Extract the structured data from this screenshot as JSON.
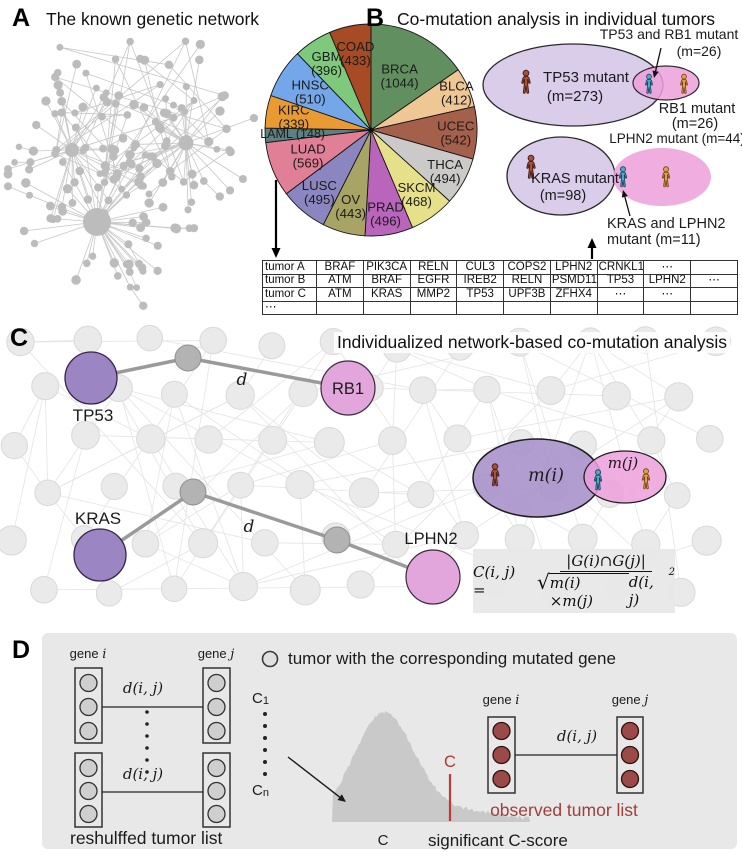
{
  "panel_a": {
    "letter": "A",
    "title": "The known genetic network"
  },
  "panel_b": {
    "letter": "B",
    "title": "Co-mutation analysis in individual tumors",
    "venn_top": {
      "overlap_name": "TP53 and RB1 mutant",
      "overlap_m": "(m=26)",
      "left_name": "TP53 mutant",
      "left_m": "(m=273)",
      "right_name": "RB1 mutant",
      "right_m": "(m=26)"
    },
    "venn_bottom": {
      "right_name": "LPHN2 mutant (m=44)",
      "left_name": "KRAS mutant",
      "left_m": "(m=98)",
      "overlap_line1": "KRAS and LPHN2",
      "overlap_line2": "mutant (m=11)"
    },
    "table_rows": [
      [
        "tumor A",
        "BRAF",
        "PIK3CA",
        "RELN",
        "CUL3",
        "COPS2",
        "LPHN2",
        "CRNKL1",
        "⋯",
        ""
      ],
      [
        "tumor B",
        "ATM",
        "BRAF",
        "EGFR",
        "IREB2",
        "RELN",
        "PSMD11",
        "TP53",
        "LPHN2",
        "⋯"
      ],
      [
        "tumor C",
        "ATM",
        "KRAS",
        "MMP2",
        "TP53",
        "UPF3B",
        "ZFHX4",
        "⋯",
        "⋯",
        ""
      ],
      [
        "⋯",
        "",
        "",
        "",
        "",
        "",
        "",
        "",
        "",
        ""
      ]
    ]
  },
  "chart_data": {
    "type": "pie",
    "title": "",
    "categories": [
      "BRCA",
      "BLCA",
      "UCEC",
      "THCA",
      "SKCM",
      "PRAD",
      "OV",
      "LUSC",
      "LUAD",
      "LAML",
      "KIRC",
      "HNSC",
      "GBM",
      "COAD"
    ],
    "values": [
      1044,
      412,
      542,
      494,
      468,
      496,
      443,
      495,
      569,
      148,
      339,
      510,
      396,
      433
    ],
    "colors": [
      "#618f60",
      "#eec795",
      "#a5604c",
      "#cbcac8",
      "#e7e08b",
      "#ba65bc",
      "#a7a465",
      "#8b86bf",
      "#e07f95",
      "#5c8180",
      "#e99a33",
      "#73a7ea",
      "#7fc97d",
      "#a74b24"
    ],
    "start_angle_deg": -90,
    "direction": "clockwise",
    "legend_position": "none"
  },
  "panel_c": {
    "letter": "C",
    "title": "Individualized network-based co-mutation analysis",
    "node_tp53": "TP53",
    "node_rb1": "RB1",
    "node_kras": "KRAS",
    "node_lphn2": "LPHN2",
    "distance_label_1": "d",
    "distance_label_2": "d",
    "venn_left": "m(i)",
    "venn_right": "m(j)",
    "formula": {
      "lhs": "C(i, j) =",
      "numerator": "|G(i)∩G(j)|",
      "sqrt_content": "m(i) ×m(j)",
      "after_sqrt": "d(i, j)",
      "exponent": "2"
    }
  },
  "panel_d": {
    "letter": "D",
    "gene_word": "gene",
    "i_var": "i",
    "j_var": "j",
    "dij_1": "d(i, j)",
    "dij_2": "d(i, j)",
    "dij_3": "d(i, j)",
    "c_letter": "C",
    "c1_sub": "1",
    "cn_sub": "n",
    "legend_text": "tumor with the corresponding mutated gene",
    "reshuffled_caption": "reshulffed tumor list",
    "observed_caption": "observed tumor list",
    "c_marker": "C",
    "c_axis": "C",
    "significant_caption": "significant C-score"
  },
  "colors": {
    "venn_purple_light": "#d9cde9",
    "venn_pink": "#ec9fda",
    "venn_purple_strong": "#a78fc9",
    "node_purple": "#9b85c2",
    "node_pink": "#e3a6dc",
    "node_gray": "#b3b3b3",
    "person_red": "#a8503c",
    "person_blue": "#4fa9c8",
    "person_orange": "#e6a042",
    "tumor_dot_red": "#9c4a47",
    "accent_red": "#bf3a30",
    "dist_gray": "#c9c9c9",
    "panel_gray": "#e8e8e8",
    "bg_node_fill": "#eaeaea",
    "bg_node_stroke": "#d9d9d9",
    "bg_edge": "#e4e4e4",
    "network_gray": "#bcbcbc"
  }
}
